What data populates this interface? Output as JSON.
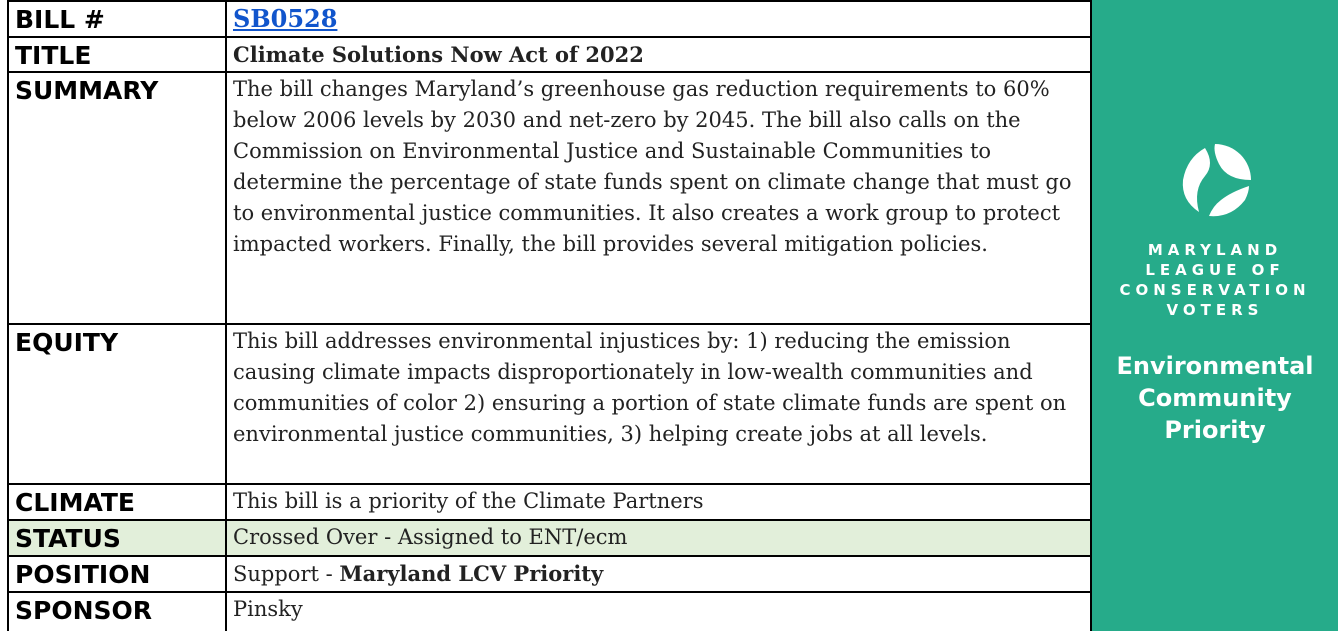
{
  "table": {
    "rows": [
      {
        "label": "BILL #",
        "value": "SB0528"
      },
      {
        "label": "TITLE",
        "value": "Climate Solutions Now Act of 2022"
      },
      {
        "label": "SUMMARY",
        "value": "The bill changes Maryland’s greenhouse gas reduction requirements to 60% below 2006 levels by 2030 and net-zero by 2045.  The bill also calls on the Commission on Environmental Justice and Sustainable Communities to determine the percentage of state funds spent on climate change that must go to environmental justice communities. It also creates a work group to protect impacted workers. Finally, the bill provides several mitigation policies."
      },
      {
        "label": "EQUITY",
        "value": "This bill addresses environmental injustices by: 1) reducing the emission causing climate impacts disproportionately in low-wealth communities and communities of color 2) ensuring a portion of state climate funds are spent on environmental justice communities, 3) helping create jobs at all levels."
      },
      {
        "label": "CLIMATE",
        "value": "This bill is a priority of the Climate Partners"
      },
      {
        "label": "STATUS",
        "value": "Crossed Over - Assigned to ENT/ecm"
      },
      {
        "label": "POSITION",
        "value": "Support - ",
        "value_bold": "Maryland LCV Priority"
      },
      {
        "label": "SPONSOR",
        "value": "Pinsky"
      }
    ]
  },
  "sidebar": {
    "logo_lines": [
      "MARYLAND",
      "LEAGUE OF",
      "CONSERVATION",
      "VOTERS"
    ],
    "priority_lines": [
      "Environmental",
      "Community",
      "Priority"
    ]
  }
}
